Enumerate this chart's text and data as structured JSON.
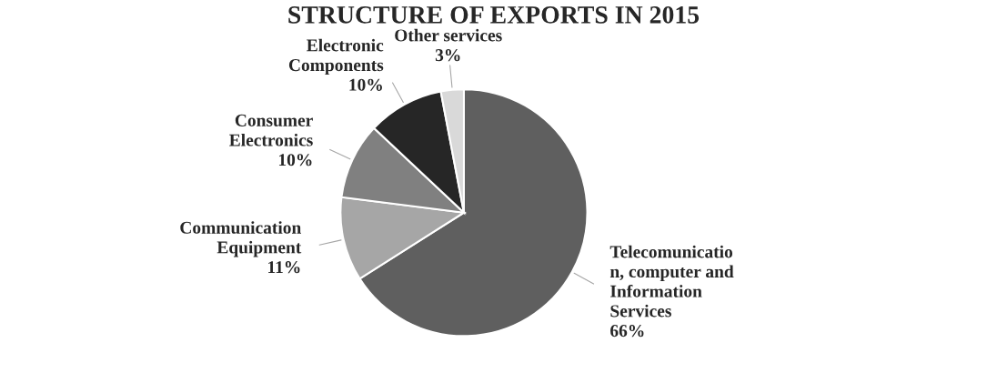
{
  "chart_data": {
    "type": "pie",
    "title": "STRUCTURE OF EXPORTS IN 2015",
    "categories": [
      "Telecomunication, computer and Information Services",
      "Communication Equipment",
      "Consumer Electronics",
      "Electronic Components",
      "Other services"
    ],
    "values": [
      66,
      11,
      10,
      10,
      3
    ],
    "colors": [
      "#5f5f5f",
      "#a6a6a6",
      "#808080",
      "#262626",
      "#d9d9d9"
    ],
    "value_labels": [
      "66%",
      "11%",
      "10%",
      "10%",
      "3%"
    ],
    "legend": false
  }
}
